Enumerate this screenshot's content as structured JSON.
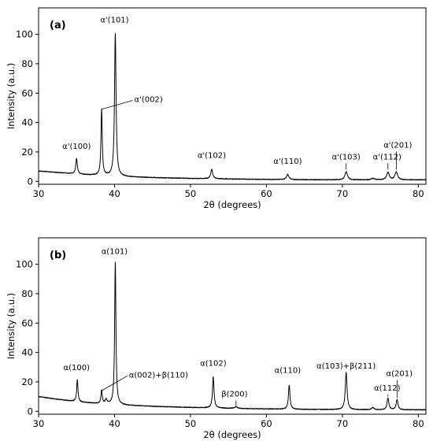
{
  "chart_data": [
    {
      "type": "line",
      "panel_label": "(a)",
      "xlabel": "2θ (degrees)",
      "ylabel": "Intensity (a.u.)",
      "xlim": [
        30,
        81
      ],
      "ylim": [
        -2,
        118
      ],
      "xticks": [
        30,
        40,
        50,
        60,
        70,
        80
      ],
      "yticks": [
        0,
        20,
        40,
        60,
        80,
        100
      ],
      "grid": false,
      "baseline": [
        [
          30,
          7
        ],
        [
          32,
          6.2
        ],
        [
          34,
          5.4
        ],
        [
          36,
          4.6
        ],
        [
          38,
          4.0
        ],
        [
          42,
          3.0
        ],
        [
          46,
          2.4
        ],
        [
          50,
          2.0
        ],
        [
          55,
          1.6
        ],
        [
          60,
          1.3
        ],
        [
          65,
          1.1
        ],
        [
          70,
          1.0
        ],
        [
          75,
          1.0
        ],
        [
          81,
          1.0
        ]
      ],
      "peaks": [
        {
          "x": 35.0,
          "height": 10.5,
          "width": 0.12
        },
        {
          "x": 38.3,
          "height": 45,
          "width": 0.1
        },
        {
          "x": 40.1,
          "height": 97,
          "width": 0.12
        },
        {
          "x": 52.8,
          "height": 6.5,
          "width": 0.15
        },
        {
          "x": 62.8,
          "height": 3.5,
          "width": 0.18
        },
        {
          "x": 70.5,
          "height": 5.5,
          "width": 0.2
        },
        {
          "x": 74.0,
          "height": 1.0,
          "width": 0.25
        },
        {
          "x": 76.0,
          "height": 5.2,
          "width": 0.2
        },
        {
          "x": 77.1,
          "height": 5.5,
          "width": 0.2
        }
      ],
      "annotations": [
        {
          "text": "α'(101)",
          "x": 40.0,
          "y": 108
        },
        {
          "text": "α'(002)",
          "x": 45.5,
          "y": 54,
          "target": [
            38.3,
            49
          ]
        },
        {
          "text": "α'(100)",
          "x": 35.0,
          "y": 22
        },
        {
          "text": "α'(102)",
          "x": 52.8,
          "y": 16
        },
        {
          "text": "α'(110)",
          "x": 62.8,
          "y": 12
        },
        {
          "text": "α'(103)",
          "x": 70.5,
          "y": 15,
          "target": [
            70.5,
            8
          ]
        },
        {
          "text": "α'(112)",
          "x": 75.9,
          "y": 15,
          "target": [
            76.0,
            8
          ]
        },
        {
          "text": "α'(201)",
          "x": 77.3,
          "y": 23,
          "target": [
            77.1,
            8
          ]
        }
      ]
    },
    {
      "type": "line",
      "panel_label": "(b)",
      "xlabel": "2θ (degrees)",
      "ylabel": "Intensity (a.u.)",
      "xlim": [
        30,
        81
      ],
      "ylim": [
        -2,
        118
      ],
      "xticks": [
        30,
        40,
        50,
        60,
        70,
        80
      ],
      "yticks": [
        0,
        20,
        40,
        60,
        80,
        100
      ],
      "grid": false,
      "baseline": [
        [
          30,
          10
        ],
        [
          32,
          8.5
        ],
        [
          34,
          7.2
        ],
        [
          36,
          6.0
        ],
        [
          38,
          5.2
        ],
        [
          42,
          4.0
        ],
        [
          46,
          3.2
        ],
        [
          50,
          2.6
        ],
        [
          55,
          2.0
        ],
        [
          60,
          1.6
        ],
        [
          65,
          1.3
        ],
        [
          70,
          1.1
        ],
        [
          75,
          1.0
        ],
        [
          81,
          1.0
        ]
      ],
      "peaks": [
        {
          "x": 35.1,
          "height": 15,
          "width": 0.1
        },
        {
          "x": 38.3,
          "height": 9,
          "width": 0.1
        },
        {
          "x": 38.9,
          "height": 3,
          "width": 0.15
        },
        {
          "x": 40.1,
          "height": 97,
          "width": 0.1
        },
        {
          "x": 53.0,
          "height": 21,
          "width": 0.12
        },
        {
          "x": 56.0,
          "height": 1.2,
          "width": 0.2
        },
        {
          "x": 63.0,
          "height": 16.5,
          "width": 0.12
        },
        {
          "x": 70.5,
          "height": 25.5,
          "width": 0.14
        },
        {
          "x": 74.0,
          "height": 1.5,
          "width": 0.2
        },
        {
          "x": 76.0,
          "height": 8,
          "width": 0.14
        },
        {
          "x": 77.2,
          "height": 7,
          "width": 0.14
        }
      ],
      "annotations": [
        {
          "text": "α(101)",
          "x": 40.0,
          "y": 107
        },
        {
          "text": "α(002)+β(110)",
          "x": 44.8,
          "y": 23,
          "target": [
            38.3,
            14
          ]
        },
        {
          "text": "α(100)",
          "x": 35.0,
          "y": 28
        },
        {
          "text": "α(102)",
          "x": 53.0,
          "y": 31
        },
        {
          "text": "β(200)",
          "x": 55.8,
          "y": 10,
          "target": [
            56.0,
            3.5
          ]
        },
        {
          "text": "α(110)",
          "x": 62.8,
          "y": 26
        },
        {
          "text": "α(103)+β(211)",
          "x": 70.5,
          "y": 29,
          "target": [
            70.5,
            25
          ]
        },
        {
          "text": "α(112)",
          "x": 75.9,
          "y": 14,
          "target": [
            76.0,
            10
          ]
        },
        {
          "text": "α(201)",
          "x": 77.5,
          "y": 24,
          "target": [
            77.2,
            9
          ]
        }
      ]
    }
  ]
}
